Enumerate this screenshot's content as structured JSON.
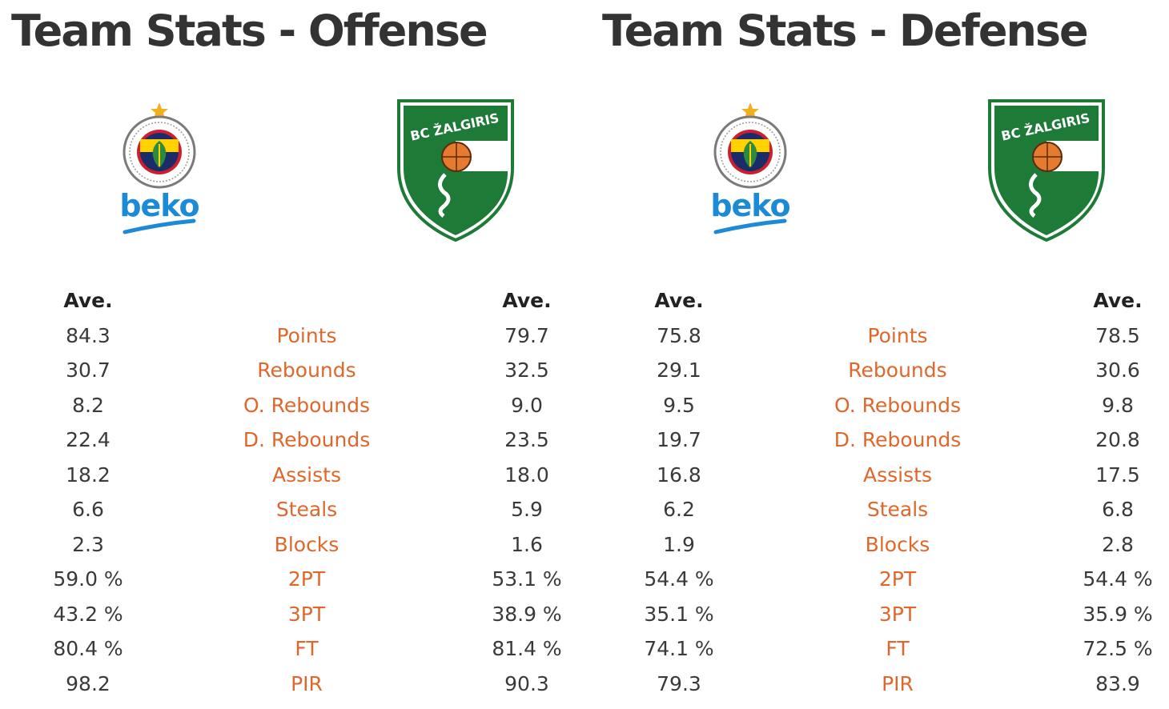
{
  "colors": {
    "title": "#333333",
    "label_orange": "#e0672b",
    "value_text": "#3a3a3a",
    "zalgiris_green": "#1e7a37",
    "fenerbahce_yellow": "#ffd200",
    "fenerbahce_navy": "#1b2c6b",
    "beko_blue": "#1d8ad8"
  },
  "offense": {
    "title": "Team Stats - Offense",
    "home_logo": {
      "icon": "fenerbahce-beko-logo",
      "brand_text": "beko"
    },
    "away_logo": {
      "icon": "zalgiris-shield-logo",
      "brand_text": "BC ŽALGIRIS"
    },
    "header": {
      "left": "Ave.",
      "right": "Ave."
    },
    "rows": [
      {
        "left": "84.3",
        "label": "Points",
        "right": "79.7"
      },
      {
        "left": "30.7",
        "label": "Rebounds",
        "right": "32.5"
      },
      {
        "left": "8.2",
        "label": "O. Rebounds",
        "right": "9.0"
      },
      {
        "left": "22.4",
        "label": "D. Rebounds",
        "right": "23.5"
      },
      {
        "left": "18.2",
        "label": "Assists",
        "right": "18.0"
      },
      {
        "left": "6.6",
        "label": "Steals",
        "right": "5.9"
      },
      {
        "left": "2.3",
        "label": "Blocks",
        "right": "1.6"
      },
      {
        "left": "59.0 %",
        "label": "2PT",
        "right": "53.1 %"
      },
      {
        "left": "43.2 %",
        "label": "3PT",
        "right": "38.9 %"
      },
      {
        "left": "80.4 %",
        "label": "FT",
        "right": "81.4 %"
      },
      {
        "left": "98.2",
        "label": "PIR",
        "right": "90.3"
      }
    ]
  },
  "defense": {
    "title": "Team Stats - Defense",
    "home_logo": {
      "icon": "fenerbahce-beko-logo",
      "brand_text": "beko"
    },
    "away_logo": {
      "icon": "zalgiris-shield-logo",
      "brand_text": "BC ŽALGIRIS"
    },
    "header": {
      "left": "Ave.",
      "right": "Ave."
    },
    "rows": [
      {
        "left": "75.8",
        "label": "Points",
        "right": "78.5"
      },
      {
        "left": "29.1",
        "label": "Rebounds",
        "right": "30.6"
      },
      {
        "left": "9.5",
        "label": "O. Rebounds",
        "right": "9.8"
      },
      {
        "left": "19.7",
        "label": "D. Rebounds",
        "right": "20.8"
      },
      {
        "left": "16.8",
        "label": "Assists",
        "right": "17.5"
      },
      {
        "left": "6.2",
        "label": "Steals",
        "right": "6.8"
      },
      {
        "left": "1.9",
        "label": "Blocks",
        "right": "2.8"
      },
      {
        "left": "54.4 %",
        "label": "2PT",
        "right": "54.4 %"
      },
      {
        "left": "35.1 %",
        "label": "3PT",
        "right": "35.9 %"
      },
      {
        "left": "74.1 %",
        "label": "FT",
        "right": "72.5 %"
      },
      {
        "left": "79.3",
        "label": "PIR",
        "right": "83.9"
      }
    ]
  }
}
